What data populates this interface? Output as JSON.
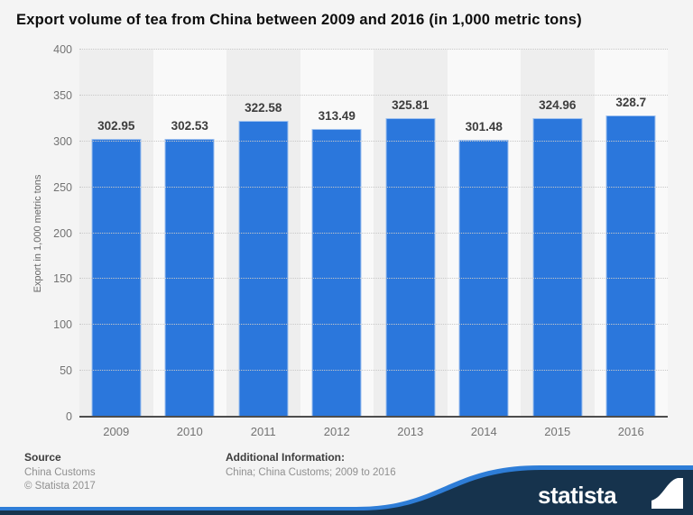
{
  "title": "Export volume of tea from China between 2009 and 2016 (in 1,000 metric tons)",
  "chart_data": {
    "type": "bar",
    "title": "Export volume of tea from China between 2009 and 2016 (in 1,000 metric tons)",
    "categories": [
      "2009",
      "2010",
      "2011",
      "2012",
      "2013",
      "2014",
      "2015",
      "2016"
    ],
    "values": [
      302.95,
      302.53,
      322.58,
      313.49,
      325.81,
      301.48,
      324.96,
      328.7
    ],
    "value_labels": [
      "302.95",
      "302.53",
      "322.58",
      "313.49",
      "325.81",
      "301.48",
      "324.96",
      "328.7"
    ],
    "xlabel": "",
    "ylabel": "Export in 1,000 metric tons",
    "ylim": [
      0,
      400
    ],
    "ytick_step": 50,
    "yticks": [
      0,
      50,
      100,
      150,
      200,
      250,
      300,
      350,
      400
    ],
    "grid": "horizontal-dotted",
    "legend": "none",
    "bar_color": "#2b77dc",
    "band_color_a": "#eeeeee",
    "band_color_b": "#f9f9f9"
  },
  "footer": {
    "source_label": "Source",
    "source_value": "China Customs",
    "copyright": "© Statista 2017",
    "additional_label": "Additional Information:",
    "additional_value": "China; China Customs; 2009 to 2016"
  },
  "branding": {
    "logo_text": "statista",
    "banner_color": "#16334d",
    "accent_color": "#2e7dd7"
  }
}
